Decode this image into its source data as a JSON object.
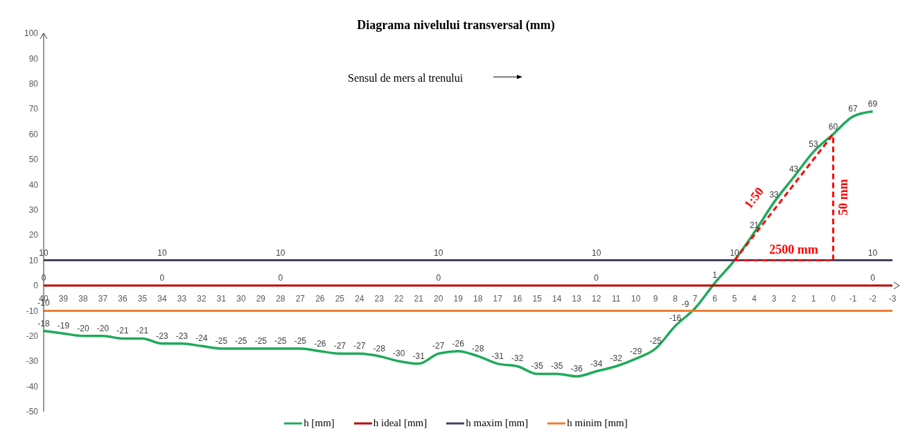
{
  "chart_data": {
    "type": "line",
    "title": "Diagrama nivelului transversal (mm)",
    "categories": [
      "40",
      "39",
      "38",
      "37",
      "36",
      "35",
      "34",
      "33",
      "32",
      "31",
      "30",
      "29",
      "28",
      "27",
      "26",
      "25",
      "24",
      "23",
      "22",
      "21",
      "20",
      "19",
      "18",
      "17",
      "16",
      "15",
      "14",
      "13",
      "12",
      "11",
      "10",
      "9",
      "8",
      "7",
      "6",
      "5",
      "4",
      "3",
      "2",
      "1",
      "0",
      "-1",
      "-2",
      "-3"
    ],
    "series": [
      {
        "name": "h [mm]",
        "color": "#1faa5a",
        "values": [
          -18,
          -19,
          -20,
          -20,
          -21,
          -21,
          -23,
          -23,
          -24,
          -25,
          -25,
          -25,
          -25,
          -25,
          -26,
          -27,
          -27,
          -28,
          -30,
          -31,
          -27,
          -26,
          -28,
          -31,
          -32,
          -35,
          -35,
          -36,
          -34,
          -32,
          -29,
          -25,
          -16,
          -9,
          1,
          10,
          21,
          33,
          43,
          53,
          60,
          67,
          69,
          null
        ],
        "value_labels": [
          "-18",
          "-19",
          "-20",
          "-20",
          "-21",
          "-21",
          "-23",
          "-23",
          "-24",
          "-25",
          "-25",
          "-25",
          "-25",
          "-25",
          "-26",
          "-27",
          "-27",
          "-28",
          "-30",
          "-31",
          "-27",
          "-26",
          "-28",
          "-31",
          "-32",
          "-35",
          "-35",
          "-36",
          "-34",
          "-32",
          "-29",
          "-25",
          "-16",
          "-9",
          "1",
          "10",
          "21",
          "33",
          "43",
          "53",
          "60",
          "67",
          "69",
          null
        ]
      },
      {
        "name": "h ideal [mm]",
        "color": "#c00000",
        "values": [
          0,
          0,
          0,
          0,
          0,
          0,
          0,
          0,
          0,
          0,
          0,
          0,
          0,
          0,
          0,
          0,
          0,
          0,
          0,
          0,
          0,
          0,
          0,
          0,
          0,
          0,
          0,
          0,
          0,
          0,
          0,
          0,
          0,
          0,
          0,
          0,
          0,
          0,
          0,
          0,
          0,
          0,
          0,
          0
        ],
        "value_labels": [
          "0",
          null,
          null,
          null,
          null,
          null,
          "0",
          null,
          null,
          null,
          null,
          null,
          "0",
          null,
          null,
          null,
          null,
          null,
          null,
          null,
          "0",
          null,
          null,
          null,
          null,
          null,
          null,
          null,
          "0",
          null,
          null,
          null,
          null,
          null,
          null,
          null,
          null,
          null,
          null,
          null,
          null,
          null,
          "0",
          null
        ]
      },
      {
        "name": "h maxim [mm]",
        "color": "#44415e",
        "values": [
          10,
          10,
          10,
          10,
          10,
          10,
          10,
          10,
          10,
          10,
          10,
          10,
          10,
          10,
          10,
          10,
          10,
          10,
          10,
          10,
          10,
          10,
          10,
          10,
          10,
          10,
          10,
          10,
          10,
          10,
          10,
          10,
          10,
          10,
          10,
          10,
          10,
          10,
          10,
          10,
          10,
          10,
          10,
          10
        ],
        "value_labels": [
          "10",
          null,
          null,
          null,
          null,
          null,
          "10",
          null,
          null,
          null,
          null,
          null,
          "10",
          null,
          null,
          null,
          null,
          null,
          null,
          null,
          "10",
          null,
          null,
          null,
          null,
          null,
          null,
          null,
          "10",
          null,
          null,
          null,
          null,
          null,
          null,
          null,
          null,
          null,
          null,
          null,
          null,
          null,
          "10",
          null
        ]
      },
      {
        "name": "h minim [mm]",
        "color": "#ed7d31",
        "values": [
          -10,
          -10,
          -10,
          -10,
          -10,
          -10,
          -10,
          -10,
          -10,
          -10,
          -10,
          -10,
          -10,
          -10,
          -10,
          -10,
          -10,
          -10,
          -10,
          -10,
          -10,
          -10,
          -10,
          -10,
          -10,
          -10,
          -10,
          -10,
          -10,
          -10,
          -10,
          -10,
          -10,
          -10,
          -10,
          -10,
          -10,
          -10,
          -10,
          -10,
          -10,
          -10,
          -10,
          -10
        ],
        "value_labels": [
          "-10",
          null,
          null,
          null,
          null,
          null,
          null,
          null,
          null,
          null,
          null,
          null,
          null,
          null,
          null,
          null,
          null,
          null,
          null,
          null,
          null,
          null,
          null,
          null,
          null,
          null,
          null,
          null,
          null,
          null,
          null,
          null,
          null,
          null,
          null,
          null,
          null,
          null,
          null,
          null,
          null,
          null,
          null,
          null
        ]
      },
      {
        "color": "#ff0000",
        "line_style": "dashed",
        "values": [
          null,
          null,
          null,
          null,
          null,
          null,
          null,
          null,
          null,
          null,
          null,
          null,
          null,
          null,
          null,
          null,
          null,
          null,
          null,
          null,
          null,
          null,
          null,
          null,
          null,
          null,
          null,
          null,
          null,
          null,
          null,
          null,
          null,
          null,
          null,
          10,
          null,
          null,
          null,
          null,
          60,
          null,
          null,
          null
        ]
      }
    ],
    "ylim": [
      -50,
      100
    ],
    "yticks": [
      -50,
      -40,
      -30,
      -20,
      -10,
      0,
      10,
      20,
      30,
      40,
      50,
      60,
      70,
      80,
      90,
      100
    ],
    "grid": false,
    "legend": "bottom",
    "marker": "none",
    "annotations": [
      "Sensul de mers al trenului",
      "1:50",
      {
        "text": "2500 mm",
        "x": "2",
        "y": 10
      },
      "50 mm"
    ]
  }
}
